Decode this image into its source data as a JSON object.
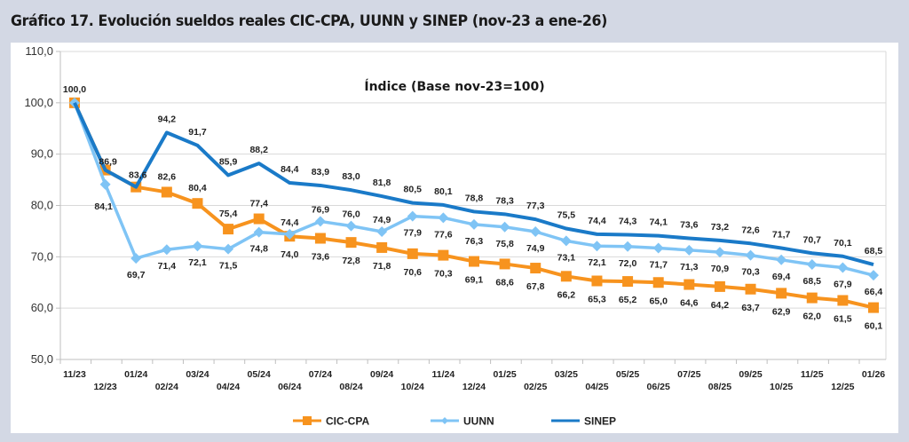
{
  "title": "Gráfico 17. Evolución sueldos reales CIC-CPA, UUNN y SINEP (nov-23 a ene-26)",
  "chart_data": {
    "type": "line",
    "title": "Gráfico 17. Evolución sueldos reales CIC-CPA, UUNN y SINEP (nov-23 a ene-26)",
    "subtitle": "Índice (Base nov-23=100)",
    "xlabel": "",
    "ylabel": "",
    "ylim": [
      50,
      110
    ],
    "yticks": [
      50,
      60,
      70,
      80,
      90,
      100,
      110
    ],
    "ytick_labels": [
      "50,0",
      "60,0",
      "70,0",
      "80,0",
      "90,0",
      "100,0",
      "110,0"
    ],
    "grid": true,
    "legend_position": "bottom",
    "categories": [
      "11/23",
      "12/23",
      "01/24",
      "02/24",
      "03/24",
      "04/24",
      "05/24",
      "06/24",
      "07/24",
      "08/24",
      "09/24",
      "10/24",
      "11/24",
      "12/24",
      "01/25",
      "02/25",
      "03/25",
      "04/25",
      "05/25",
      "06/25",
      "07/25",
      "08/25",
      "09/25",
      "10/25",
      "11/25",
      "12/25",
      "01/26"
    ],
    "series": [
      {
        "name": "CIC-CPA",
        "color": "#f7931e",
        "marker": "square",
        "values": [
          100.0,
          86.9,
          83.6,
          82.6,
          80.4,
          75.4,
          77.4,
          74.0,
          73.6,
          72.8,
          71.8,
          70.6,
          70.3,
          69.1,
          68.6,
          67.8,
          66.2,
          65.3,
          65.2,
          65.0,
          64.6,
          64.2,
          63.7,
          62.9,
          62.0,
          61.5,
          60.1
        ]
      },
      {
        "name": "UUNN",
        "color": "#7fc4f5",
        "marker": "diamond",
        "values": [
          100.0,
          84.1,
          69.7,
          71.4,
          72.1,
          71.5,
          74.8,
          74.4,
          76.9,
          76.0,
          74.9,
          77.9,
          77.6,
          76.3,
          75.8,
          74.9,
          73.1,
          72.1,
          72.0,
          71.7,
          71.3,
          70.9,
          70.3,
          69.4,
          68.5,
          67.9,
          66.4
        ]
      },
      {
        "name": "SINEP",
        "color": "#1a7ac8",
        "marker": "none",
        "values": [
          100.0,
          86.9,
          83.6,
          94.2,
          91.7,
          85.9,
          88.2,
          84.4,
          83.9,
          83.0,
          81.8,
          80.5,
          80.1,
          78.8,
          78.3,
          77.3,
          75.5,
          74.4,
          74.3,
          74.1,
          73.6,
          73.2,
          72.6,
          71.7,
          70.7,
          70.1,
          68.5
        ]
      }
    ]
  },
  "labels": {
    "CIC-CPA": [
      "",
      "",
      "",
      "82,6",
      "80,4",
      "75,4",
      "77,4",
      "74,0",
      "73,6",
      "72,8",
      "71,8",
      "70,6",
      "70,3",
      "69,1",
      "68,6",
      "67,8",
      "66,2",
      "65,3",
      "65,2",
      "65,0",
      "64,6",
      "64,2",
      "63,7",
      "62,9",
      "62,0",
      "61,5",
      "60,1"
    ],
    "UUNN": [
      "",
      "84,1",
      "69,7",
      "71,4",
      "72,1",
      "71,5",
      "74,8",
      "74,4",
      "76,9",
      "76,0",
      "74,9",
      "77,9",
      "77,6",
      "76,3",
      "75,8",
      "74,9",
      "73,1",
      "72,1",
      "72,0",
      "71,7",
      "71,3",
      "70,9",
      "70,3",
      "69,4",
      "68,5",
      "67,9",
      "66,4"
    ],
    "SINEP": [
      "100,0",
      "86,9",
      "83,6",
      "94,2",
      "91,7",
      "85,9",
      "88,2",
      "84,4",
      "83,9",
      "83,0",
      "81,8",
      "80,5",
      "80,1",
      "78,8",
      "78,3",
      "77,3",
      "75,5",
      "74,4",
      "74,3",
      "74,1",
      "73,6",
      "73,2",
      "72,6",
      "71,7",
      "70,7",
      "70,1",
      "68,5"
    ]
  }
}
